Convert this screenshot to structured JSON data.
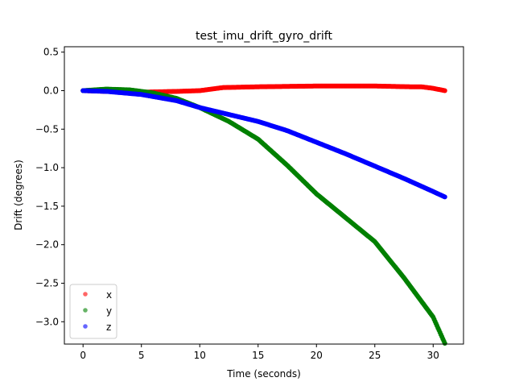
{
  "chart_data": {
    "type": "scatter",
    "title": "test_imu_drift_gyro_drift",
    "xlabel": "Time (seconds)",
    "ylabel": "Drift (degrees)",
    "xlim": [
      -1.6,
      32.6
    ],
    "ylim": [
      -3.29,
      0.57
    ],
    "xticks": [
      0,
      5,
      10,
      15,
      20,
      25,
      30
    ],
    "yticks": [
      0.5,
      0.0,
      -0.5,
      -1.0,
      -1.5,
      -2.0,
      -2.5,
      -3.0
    ],
    "ytick_labels": [
      "0.5",
      "0.0",
      "−0.5",
      "−1.0",
      "−1.5",
      "−2.0",
      "−2.5",
      "−3.0"
    ],
    "grid": false,
    "legend_placement": "lower-left",
    "series": [
      {
        "name": "x",
        "color": "#ff0000",
        "x": [
          0,
          2,
          5,
          8,
          10,
          11,
          12,
          15,
          20,
          25,
          28,
          29,
          30,
          31
        ],
        "y": [
          0,
          -0.01,
          -0.02,
          -0.01,
          0.0,
          0.02,
          0.04,
          0.05,
          0.06,
          0.06,
          0.05,
          0.05,
          0.03,
          0.0
        ]
      },
      {
        "name": "y",
        "color": "#008000",
        "x": [
          0,
          2,
          4,
          6,
          8,
          10,
          12.5,
          15,
          17.5,
          20,
          22.5,
          25,
          27.5,
          30,
          31
        ],
        "y": [
          0,
          0.02,
          0.01,
          -0.03,
          -0.1,
          -0.22,
          -0.4,
          -0.63,
          -0.97,
          -1.34,
          -1.65,
          -1.96,
          -2.43,
          -2.94,
          -3.28
        ]
      },
      {
        "name": "z",
        "color": "#0000ff",
        "x": [
          0,
          2,
          5,
          8,
          10,
          12.5,
          15,
          17.5,
          20,
          22.5,
          25,
          27.5,
          30,
          31
        ],
        "y": [
          0,
          -0.01,
          -0.05,
          -0.13,
          -0.22,
          -0.31,
          -0.4,
          -0.52,
          -0.67,
          -0.82,
          -0.98,
          -1.14,
          -1.31,
          -1.38
        ]
      }
    ]
  }
}
